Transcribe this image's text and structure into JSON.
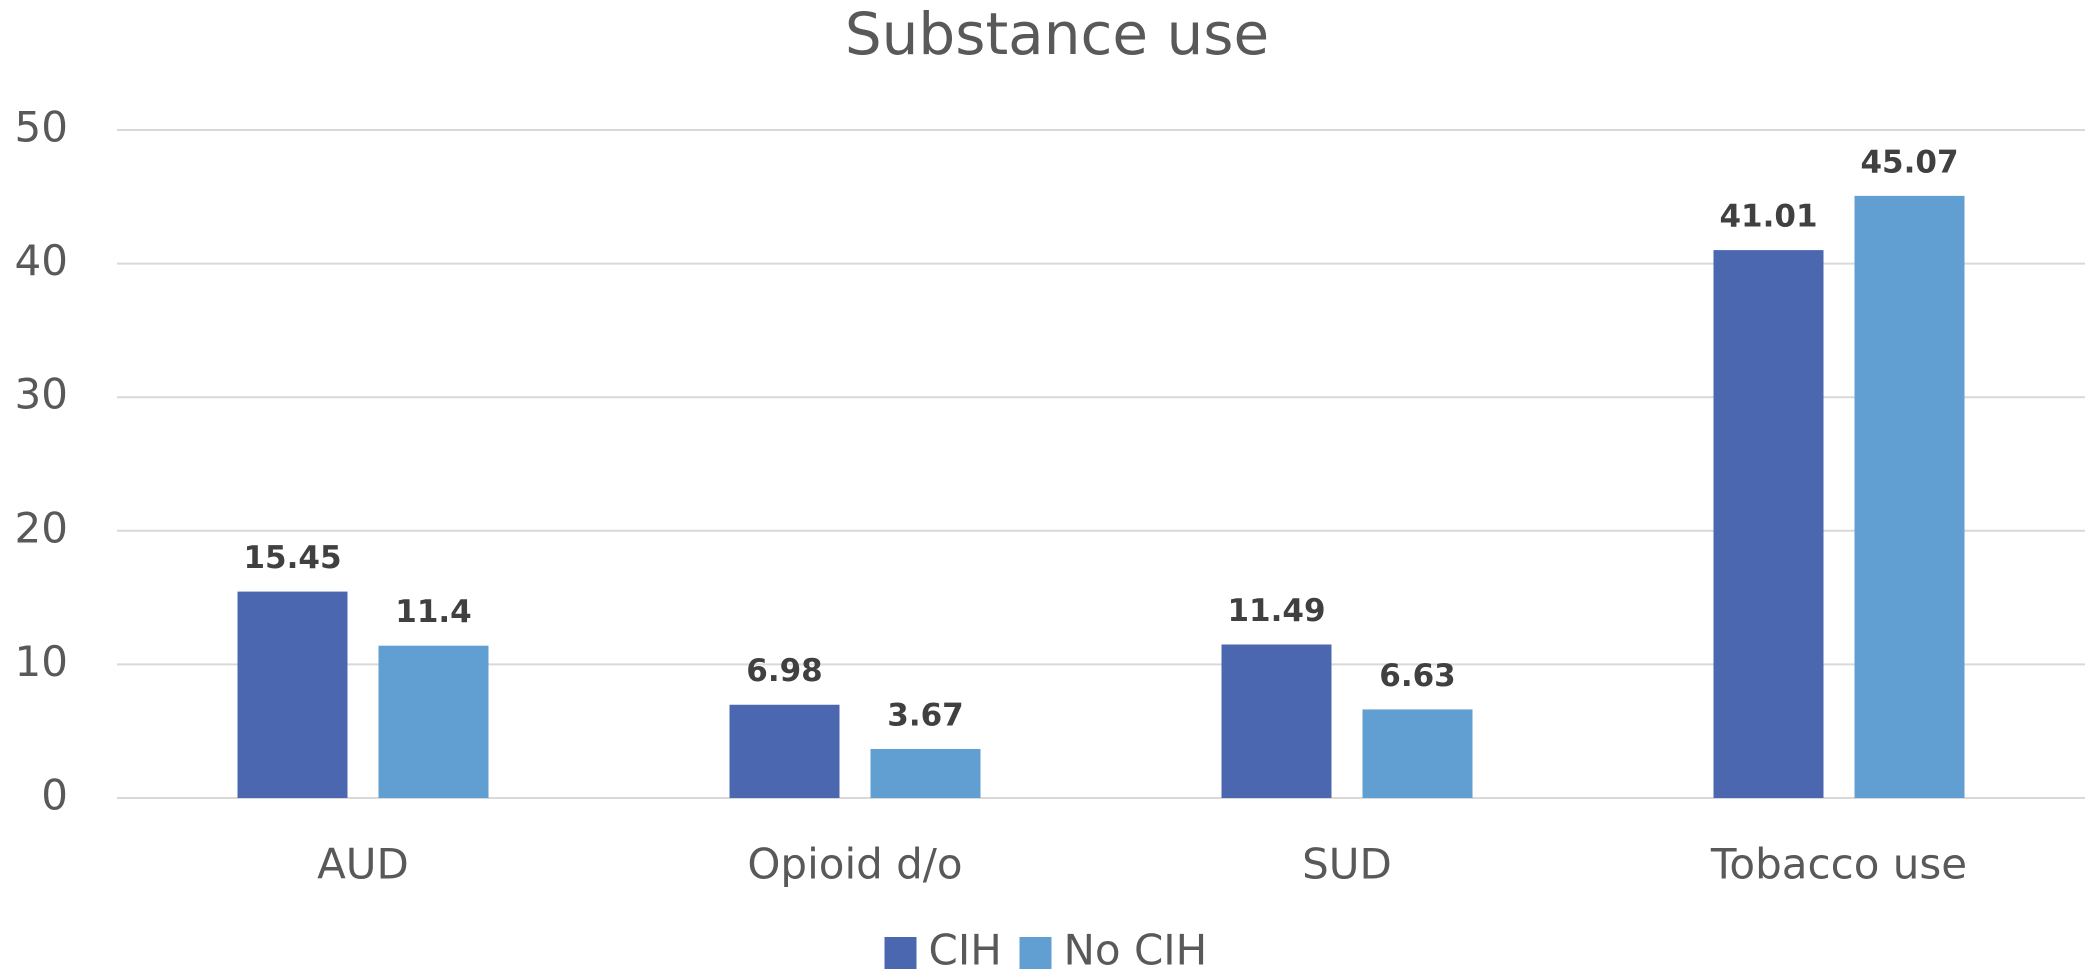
{
  "chart_data": {
    "type": "bar",
    "title": "Substance use",
    "categories": [
      "AUD",
      "Opioid d/o",
      "SUD",
      "Tobacco use"
    ],
    "series": [
      {
        "name": "CIH",
        "color": "#4a67b0",
        "values": [
          15.45,
          6.98,
          11.49,
          41.01
        ]
      },
      {
        "name": "No CIH",
        "color": "#619ed2",
        "values": [
          11.4,
          3.67,
          6.63,
          45.07
        ]
      }
    ],
    "ylim": [
      0,
      50
    ],
    "yticks": [
      0,
      10,
      20,
      30,
      40,
      50
    ],
    "grid": true,
    "legend": "bottom"
  }
}
